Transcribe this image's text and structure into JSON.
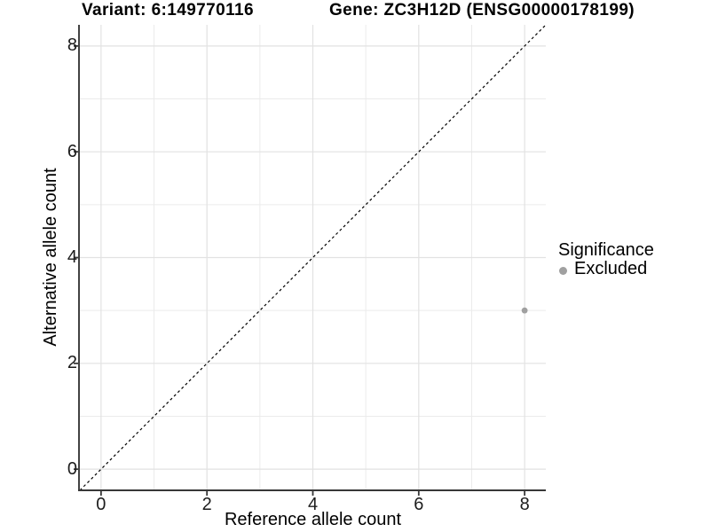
{
  "header": {
    "title_left": "Variant: 6:149770116",
    "title_right": "Gene: ZC3H12D (ENSG00000178199)"
  },
  "chart_data": {
    "type": "scatter",
    "title": "Variant: 6:149770116 — Gene: ZC3H12D (ENSG00000178199)",
    "xlabel": "Reference allele count",
    "ylabel": "Alternative allele count",
    "xlim": [
      -0.4,
      8.4
    ],
    "ylim": [
      -0.4,
      8.4
    ],
    "x_ticks": [
      0,
      2,
      4,
      6,
      8
    ],
    "y_ticks": [
      0,
      2,
      4,
      6,
      8
    ],
    "x_minor_grid": [
      1,
      3,
      5,
      7
    ],
    "y_minor_grid": [
      1,
      3,
      5,
      7
    ],
    "grid": "major and minor gridlines on white panel",
    "identity_line": {
      "style": "dashed",
      "slope": 1,
      "intercept": 0,
      "color": "#000000"
    },
    "series": [
      {
        "name": "Excluded",
        "color": "#a0a0a0",
        "points": [
          {
            "x": 8,
            "y": 3
          }
        ]
      }
    ],
    "legend": {
      "title": "Significance",
      "position": "right",
      "items": [
        {
          "label": "Excluded",
          "color": "#a0a0a0"
        }
      ]
    },
    "colors": {
      "axis_line": "#383838",
      "tick_mark": "#383838",
      "grid_major": "#e2e2e2",
      "grid_minor": "#ebebeb",
      "tick_text": "#1c1c1c"
    }
  }
}
